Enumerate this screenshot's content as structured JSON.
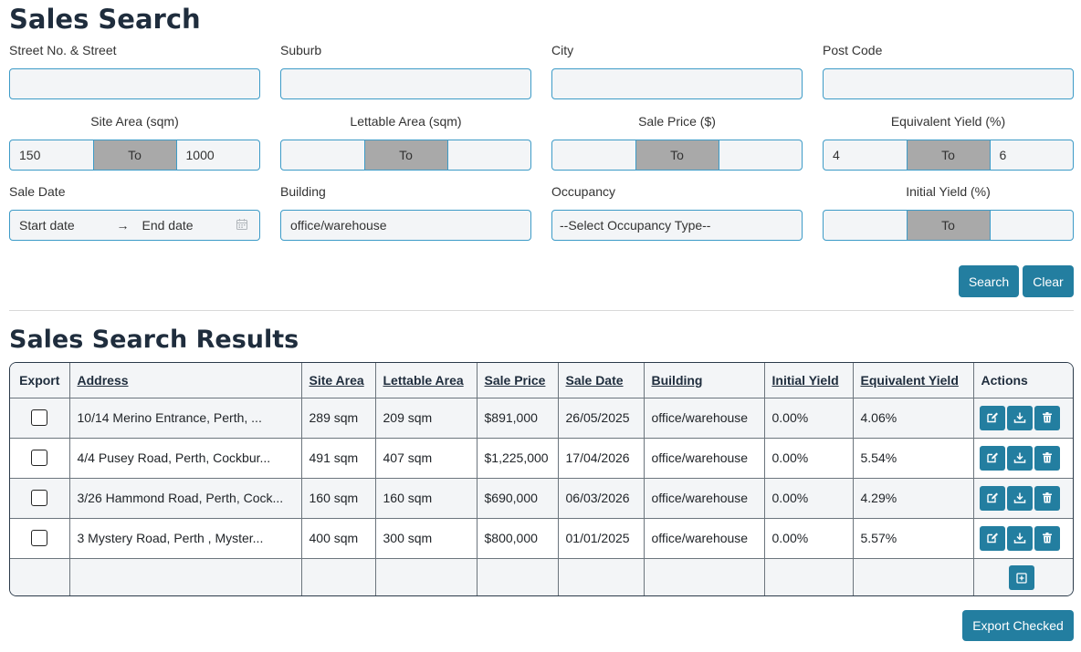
{
  "search": {
    "title": "Sales Search",
    "street_label": "Street No. & Street",
    "street_value": "",
    "suburb_label": "Suburb",
    "suburb_value": "",
    "city_label": "City",
    "city_value": "",
    "postcode_label": "Post Code",
    "postcode_value": "",
    "site_area_label": "Site Area (sqm)",
    "site_area_from": "150",
    "site_area_to": "1000",
    "lettable_area_label": "Lettable Area (sqm)",
    "lettable_area_from": "",
    "lettable_area_to": "",
    "sale_price_label": "Sale Price ($)",
    "sale_price_from": "",
    "sale_price_to": "",
    "equiv_yield_label": "Equivalent Yield (%)",
    "equiv_yield_from": "4",
    "equiv_yield_to": "6",
    "to_label": "To",
    "sale_date_label": "Sale Date",
    "start_date_placeholder": "Start date",
    "end_date_placeholder": "End date",
    "building_label": "Building",
    "building_value": "office/warehouse",
    "occupancy_label": "Occupancy",
    "occupancy_selected": "--Select Occupancy Type--",
    "initial_yield_label": "Initial Yield (%)",
    "initial_yield_from": "",
    "initial_yield_to": "",
    "search_button": "Search",
    "clear_button": "Clear"
  },
  "results": {
    "title": "Sales Search Results",
    "headers": {
      "export": "Export",
      "address": "Address",
      "site_area": "Site Area",
      "lettable_area": "Lettable Area",
      "sale_price": "Sale Price",
      "sale_date": "Sale Date",
      "building": "Building",
      "initial_yield": "Initial Yield",
      "equivalent_yield": "Equivalent Yield",
      "actions": "Actions"
    },
    "rows": [
      {
        "address": "10/14 Merino Entrance, Perth, ...",
        "site_area": "289 sqm",
        "lettable_area": "209 sqm",
        "sale_price": "$891,000",
        "sale_date": "26/05/2025",
        "building": "office/warehouse",
        "initial_yield": "0.00%",
        "equivalent_yield": "4.06%"
      },
      {
        "address": "4/4 Pusey Road, Perth, Cockbur...",
        "site_area": "491 sqm",
        "lettable_area": "407 sqm",
        "sale_price": "$1,225,000",
        "sale_date": "17/04/2026",
        "building": "office/warehouse",
        "initial_yield": "0.00%",
        "equivalent_yield": "5.54%"
      },
      {
        "address": "3/26 Hammond Road, Perth, Cock...",
        "site_area": "160 sqm",
        "lettable_area": "160 sqm",
        "sale_price": "$690,000",
        "sale_date": "06/03/2026",
        "building": "office/warehouse",
        "initial_yield": "0.00%",
        "equivalent_yield": "4.29%"
      },
      {
        "address": "3 Mystery Road, Perth , Myster...",
        "site_area": "400 sqm",
        "lettable_area": "300 sqm",
        "sale_price": "$800,000",
        "sale_date": "01/01/2025",
        "building": "office/warehouse",
        "initial_yield": "0.00%",
        "equivalent_yield": "5.57%"
      }
    ],
    "export_checked_button": "Export Checked"
  },
  "colors": {
    "accent": "#237ea0",
    "input_border": "#3d9bc7",
    "to_segment": "#a9a9a9"
  }
}
